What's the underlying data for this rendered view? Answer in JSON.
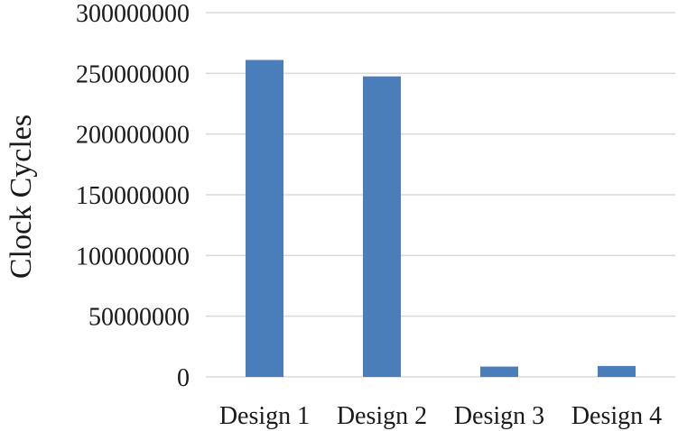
{
  "chart_data": {
    "type": "bar",
    "title": "",
    "xlabel": "",
    "ylabel": "Clock Cycles",
    "categories": [
      "Design 1",
      "Design 2",
      "Design 3",
      "Design 4"
    ],
    "values": [
      261000000,
      247500000,
      8500000,
      9000000
    ],
    "ylim": [
      0,
      300000000
    ],
    "yticks": [
      "0",
      "50000000",
      "100000000",
      "150000000",
      "200000000",
      "250000000",
      "300000000"
    ],
    "grid": true,
    "legend": "none",
    "colors": {
      "bar": "#4a7ebb",
      "grid": "#d9d9d9",
      "text": "#1a1a1a"
    }
  }
}
